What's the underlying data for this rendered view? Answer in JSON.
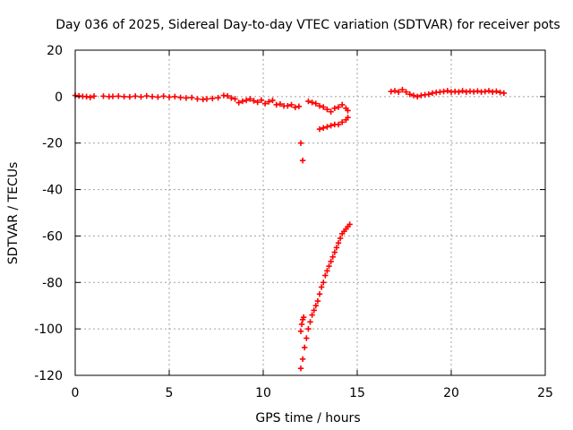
{
  "chart_data": {
    "type": "scatter",
    "title": "Day 036 of 2025, Sidereal Day-to-day VTEC variation (SDTVAR) for receiver pots",
    "xlabel": "GPS time / hours",
    "ylabel": "SDTVAR / TECUs",
    "xlim": [
      0,
      25
    ],
    "ylim": [
      -120,
      20
    ],
    "xticks": [
      "0",
      "5",
      "10",
      "15",
      "20",
      "25"
    ],
    "yticks": [
      "20",
      "0",
      "-20",
      "-40",
      "-60",
      "-80",
      "-100",
      "-120"
    ],
    "grid": true,
    "marker": "plus",
    "color": "#ff0000",
    "series": [
      {
        "x": [
          0.0,
          0.2,
          0.4,
          0.6,
          0.8,
          1.0,
          1.5,
          1.8,
          2.0,
          2.3,
          2.6,
          2.9,
          3.2,
          3.5,
          3.8,
          4.1,
          4.4,
          4.7,
          5.0,
          5.3,
          5.6,
          5.9,
          6.2,
          6.5,
          6.8,
          7.0,
          7.3,
          7.6,
          7.9,
          8.1,
          8.3,
          8.5,
          8.7,
          8.9,
          9.1,
          9.3,
          9.5,
          9.7,
          9.9,
          10.1,
          10.3,
          10.5,
          10.7,
          10.9,
          11.1,
          11.3,
          11.5,
          11.7,
          11.9,
          12.0,
          12.1,
          12.4,
          12.6,
          12.8,
          13.0,
          13.2,
          13.4,
          13.6,
          13.8,
          14.0,
          14.2,
          14.4,
          14.5
        ],
        "y": [
          0.5,
          0.3,
          0.1,
          0.0,
          -0.3,
          0.2,
          0.2,
          0.0,
          0.1,
          0.2,
          0.0,
          -0.1,
          0.2,
          -0.1,
          0.3,
          0.0,
          -0.2,
          0.2,
          -0.2,
          0.0,
          -0.4,
          -0.6,
          -0.4,
          -1.0,
          -1.2,
          -1.0,
          -0.8,
          -0.5,
          0.5,
          0.3,
          -0.6,
          -1.0,
          -2.6,
          -2.0,
          -1.6,
          -1.0,
          -1.8,
          -2.4,
          -1.5,
          -3.0,
          -2.2,
          -1.6,
          -3.5,
          -3.2,
          -4.0,
          -4.0,
          -3.5,
          -4.6,
          -4.2,
          -20.0,
          -27.5,
          -2.0,
          -2.5,
          -3.0,
          -4.0,
          -4.5,
          -5.5,
          -6.5,
          -5.0,
          -4.5,
          -3.5,
          -5.0,
          -6.0
        ]
      },
      {
        "x": [
          13.0,
          13.2,
          13.4,
          13.6,
          13.8,
          14.0,
          14.2,
          14.4,
          14.5
        ],
        "y": [
          -14.0,
          -13.5,
          -13.0,
          -12.5,
          -12.0,
          -12.0,
          -11.0,
          -10.0,
          -9.0
        ]
      },
      {
        "x": [
          12.0,
          12.1,
          12.2,
          12.3,
          12.4,
          12.5,
          12.6,
          12.7,
          12.8,
          12.9,
          13.0,
          13.1,
          13.2,
          13.3,
          13.4,
          13.5,
          13.6,
          13.7,
          13.8,
          13.9,
          14.0,
          14.1,
          14.2,
          14.3,
          14.4,
          14.5,
          14.6
        ],
        "y": [
          -117.0,
          -113.0,
          -108.0,
          -104.0,
          -100.0,
          -97.0,
          -94.0,
          -92.0,
          -90.0,
          -88.0,
          -85.0,
          -82.0,
          -80.0,
          -77.0,
          -75.0,
          -73.0,
          -71.0,
          -69.0,
          -67.0,
          -65.0,
          -63.0,
          -61.0,
          -59.0,
          -58.0,
          -57.0,
          -56.0,
          -55.0
        ]
      },
      {
        "x": [
          12.0,
          12.05,
          12.1,
          12.15
        ],
        "y": [
          -101.0,
          -98.0,
          -96.0,
          -95.0
        ]
      },
      {
        "x": [
          16.8,
          17.0,
          17.2,
          17.4,
          17.6,
          17.8,
          18.0,
          18.2,
          18.4,
          18.6,
          18.8,
          19.0,
          19.2,
          19.4,
          19.6,
          19.8,
          20.0,
          20.2,
          20.4,
          20.6,
          20.8,
          21.0,
          21.2,
          21.4,
          21.6,
          21.8,
          22.0,
          22.2,
          22.4,
          22.6,
          22.8
        ],
        "y": [
          2.2,
          2.5,
          2.0,
          3.0,
          2.0,
          1.0,
          0.5,
          0.0,
          0.5,
          0.8,
          1.0,
          1.5,
          1.8,
          2.0,
          2.2,
          2.5,
          2.0,
          2.2,
          2.0,
          2.5,
          2.0,
          2.3,
          2.1,
          2.4,
          2.0,
          2.2,
          2.5,
          2.0,
          2.3,
          1.8,
          1.5
        ]
      }
    ]
  }
}
